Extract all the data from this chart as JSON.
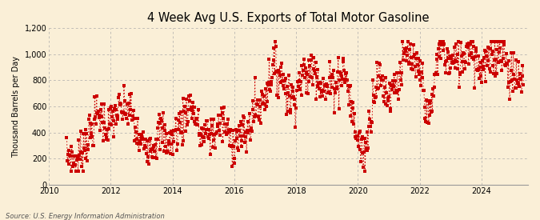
{
  "title": "4 Week Avg U.S. Exports of Total Motor Gasoline",
  "ylabel": "Thousand Barrels per Day",
  "source_text": "Source: U.S. Energy Information Administration",
  "background_color": "#faefd7",
  "line_color": "#cc0000",
  "grid_color": "#aaaaaa",
  "ylim": [
    0,
    1200
  ],
  "yticks": [
    0,
    200,
    400,
    600,
    800,
    1000,
    1200
  ],
  "xlim_start": 2010.0,
  "xlim_end": 2025.5,
  "xticks": [
    2010,
    2012,
    2014,
    2016,
    2018,
    2020,
    2022,
    2024
  ],
  "marker_size": 2.8,
  "line_width": 0.7
}
